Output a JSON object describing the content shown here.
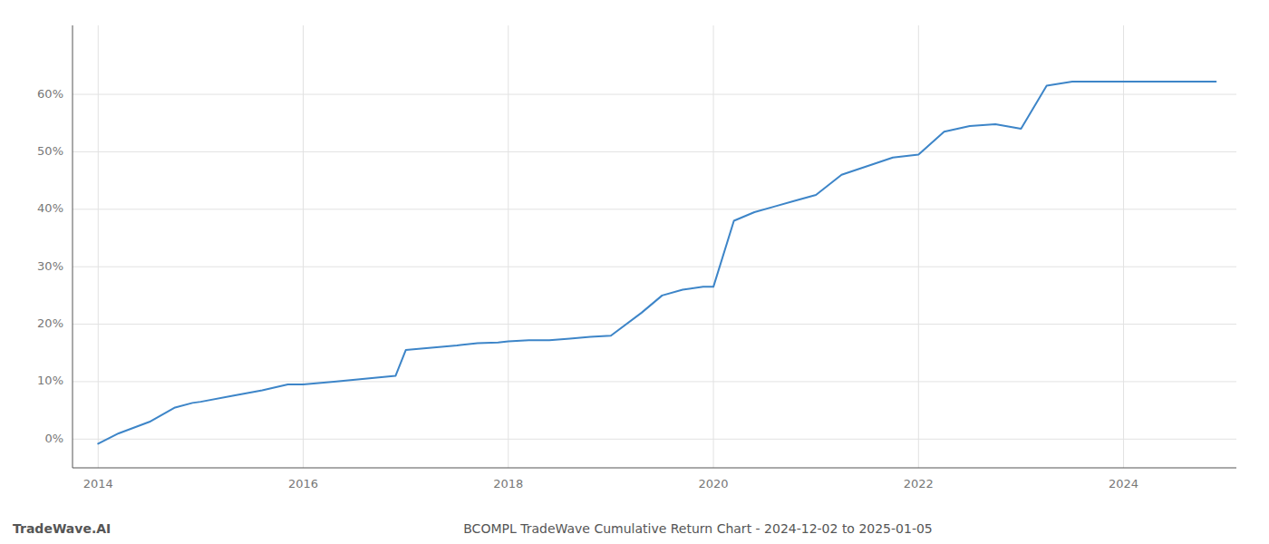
{
  "chart_data": {
    "type": "line",
    "title": "BCOMPL TradeWave Cumulative Return Chart - 2024-12-02 to 2025-01-05",
    "annotations": [
      "TradeWave.AI"
    ],
    "color": "#3d85c8",
    "grid": true,
    "x": [
      2014.0,
      2014.2,
      2014.5,
      2014.75,
      2014.92,
      2015.0,
      2015.3,
      2015.6,
      2015.85,
      2016.0,
      2016.3,
      2016.6,
      2016.9,
      2017.0,
      2017.3,
      2017.5,
      2017.7,
      2017.9,
      2018.0,
      2018.2,
      2018.4,
      2018.6,
      2018.8,
      2019.0,
      2019.3,
      2019.5,
      2019.7,
      2019.9,
      2020.0,
      2020.2,
      2020.4,
      2020.6,
      2020.8,
      2021.0,
      2021.25,
      2021.5,
      2021.75,
      2022.0,
      2022.25,
      2022.5,
      2022.75,
      2023.0,
      2023.25,
      2023.5,
      2023.75,
      2024.0,
      2024.5,
      2024.9
    ],
    "values": [
      -0.008,
      0.01,
      0.03,
      0.055,
      0.063,
      0.065,
      0.075,
      0.085,
      0.095,
      0.095,
      0.1,
      0.105,
      0.11,
      0.155,
      0.16,
      0.163,
      0.167,
      0.168,
      0.17,
      0.172,
      0.172,
      0.175,
      0.178,
      0.18,
      0.22,
      0.25,
      0.26,
      0.265,
      0.265,
      0.38,
      0.395,
      0.405,
      0.415,
      0.425,
      0.46,
      0.475,
      0.49,
      0.495,
      0.535,
      0.545,
      0.548,
      0.54,
      0.615,
      0.622,
      0.622,
      0.622,
      0.622,
      0.622
    ],
    "xlim": [
      2013.75,
      2025.1
    ],
    "ylim": [
      -0.05,
      0.72
    ],
    "xticks": [
      2014,
      2016,
      2018,
      2020,
      2022,
      2024
    ],
    "yticks": [
      {
        "value": 0.0,
        "label": "0%"
      },
      {
        "value": 0.1,
        "label": "10%"
      },
      {
        "value": 0.2,
        "label": "20%"
      },
      {
        "value": 0.3,
        "label": "30%"
      },
      {
        "value": 0.4,
        "label": "40%"
      },
      {
        "value": 0.5,
        "label": "50%"
      },
      {
        "value": 0.6,
        "label": "60%"
      }
    ]
  }
}
